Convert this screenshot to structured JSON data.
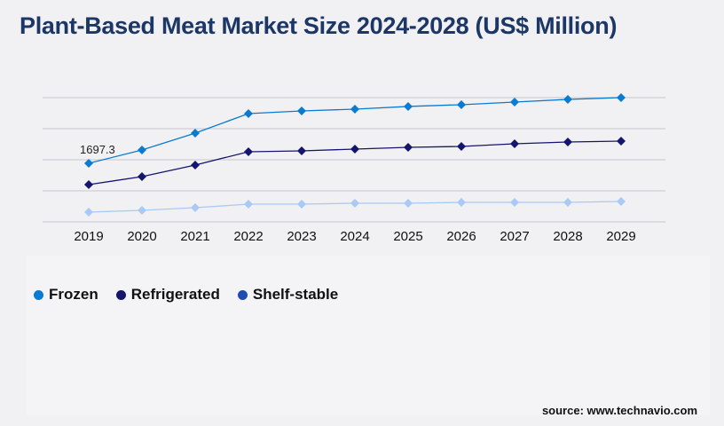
{
  "title": "Plant-Based Meat Market Size 2024-2028 (US$ Million)",
  "source": "source: www.technavio.com",
  "chart_data": {
    "type": "line",
    "title": "Plant-Based Meat Market Size 2024-2028 (US$ Million)",
    "categories": [
      "2019",
      "2020",
      "2021",
      "2022",
      "2023",
      "2024",
      "2025",
      "2026",
      "2027",
      "2028",
      "2029"
    ],
    "ylim": [
      0,
      3600
    ],
    "grid": true,
    "legend": "bottom-left",
    "series": [
      {
        "name": "Frozen",
        "color": "#0a7bd0",
        "legend_color": "#0a7bd0",
        "values": [
          1697.3,
          2083,
          2572,
          3138,
          3215,
          3266,
          3344,
          3395,
          3472,
          3549,
          3601
        ]
      },
      {
        "name": "Refrigerated",
        "color": "#15156e",
        "legend_color": "#15156e",
        "values": [
          1080,
          1312,
          1646,
          2032,
          2058,
          2109,
          2160,
          2186,
          2263,
          2315,
          2340
        ]
      },
      {
        "name": "Shelf-stable",
        "color": "#a9c9f7",
        "legend_color": "#1e4cb0",
        "values": [
          283,
          334,
          412,
          514,
          514,
          540,
          540,
          566,
          566,
          566,
          592
        ]
      }
    ],
    "annotations": [
      {
        "series": "Frozen",
        "category": "2019",
        "text": "1697.3"
      }
    ]
  }
}
